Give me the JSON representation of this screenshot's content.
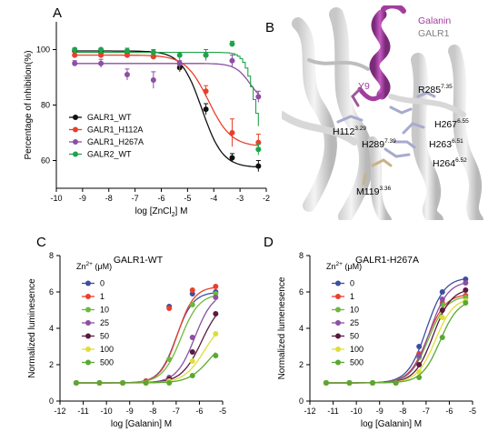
{
  "panels": {
    "A": "A",
    "B": "B",
    "C": "C",
    "D": "D"
  },
  "chart_data": [
    {
      "id": "A",
      "type": "line",
      "title": "",
      "xlabel": "log [ZnCl2] M",
      "xlabel_parts": [
        "log [ZnCl",
        "2",
        "] M"
      ],
      "ylabel": "Percentage of inhibition(%)",
      "xlim": [
        -10,
        -2
      ],
      "ylim": [
        50,
        110
      ],
      "xticks": [
        -10,
        -9,
        -8,
        -7,
        -6,
        -5,
        -4,
        -3,
        -2
      ],
      "yticks": [
        60,
        80,
        100
      ],
      "x": [
        -9.3,
        -8.3,
        -7.3,
        -6.3,
        -5.3,
        -4.3,
        -3.3,
        -2.3
      ],
      "legend_position": "lower-left",
      "series": [
        {
          "name": "GALR1_WT",
          "color": "#111111",
          "values": [
            99.5,
            99,
            99,
            97.5,
            93.5,
            78.5,
            61,
            58
          ],
          "errors": [
            1,
            1,
            1,
            1,
            1.5,
            2,
            1.5,
            2
          ],
          "curve": {
            "top": 99.5,
            "bottom": 57.5,
            "logic50": -4.45,
            "hill": 1.1
          }
        },
        {
          "name": "GALR1_H112A",
          "color": "#e8402a",
          "values": [
            98,
            98,
            98,
            97.5,
            95,
            85,
            70,
            66.5
          ],
          "errors": [
            1,
            1,
            1,
            1,
            3,
            2,
            5,
            3
          ],
          "curve": {
            "top": 98,
            "bottom": 65,
            "logic50": -4.2,
            "hill": 1.0
          }
        },
        {
          "name": "GALR1_H267A",
          "color": "#8c4fa3",
          "values": [
            95,
            95,
            91,
            89,
            95,
            98,
            96,
            83
          ],
          "errors": [
            1,
            1.5,
            2,
            3,
            1,
            2,
            2,
            2
          ],
          "curve": {
            "top": 95,
            "bottom": 80,
            "logic50": -2.6,
            "hill": 1.5
          }
        },
        {
          "name": "GALR2_WT",
          "color": "#1fa34a",
          "values": [
            100,
            100,
            99.5,
            99,
            98,
            98,
            102,
            64
          ],
          "errors": [
            0.5,
            0.5,
            1,
            1,
            1,
            1,
            1,
            2
          ],
          "curve": {
            "top": 99,
            "bottom": 60,
            "logic50": -2.45,
            "hill": 2.2,
            "step": true
          }
        }
      ]
    },
    {
      "id": "B",
      "type": "structure",
      "labels": {
        "galanin": "Galanin",
        "galr1": "GALR1",
        "y9": "Y9",
        "r285": "R285",
        "r285_sup": "7.35",
        "h112": "H112",
        "h112_sup": "3.29",
        "h289": "H289",
        "h289_sup": "7.39",
        "h267": "H267",
        "h267_sup": "6.55",
        "h263": "H263",
        "h263_sup": "6.51",
        "h264": "H264",
        "h264_sup": "6.52",
        "m119": "M119",
        "m119_sup": "3.36"
      },
      "colors": {
        "galanin": "#a23d9e",
        "galr1": "#808080",
        "stick": "#a8aacc"
      }
    },
    {
      "id": "C",
      "type": "line",
      "title": "GALR1-WT",
      "xlabel": "log [Galanin] M",
      "ylabel": "Normalized luminesence",
      "legend_title": "Zn",
      "legend_title_sup": "2+",
      "legend_title_suffix": " (μM)",
      "xlim": [
        -12,
        -5
      ],
      "ylim": [
        0,
        8
      ],
      "xticks": [
        -12,
        -11,
        -10,
        -9,
        -8,
        -7,
        -6,
        -5
      ],
      "yticks": [
        0,
        2,
        4,
        6,
        8
      ],
      "x": [
        -11.3,
        -10.3,
        -9.3,
        -8.3,
        -7.3,
        -6.3,
        -5.3
      ],
      "series": [
        {
          "name": "0",
          "color": "#3b4fa0",
          "values": [
            1,
            1,
            1,
            1.1,
            5.2,
            5.9,
            6.0
          ],
          "curve": {
            "top": 6.0,
            "logec50": -7.0,
            "hill": 1.2
          }
        },
        {
          "name": "1",
          "color": "#e8402a",
          "values": [
            1,
            1,
            1,
            1.1,
            5.1,
            6.1,
            6.3
          ],
          "curve": {
            "top": 6.3,
            "logec50": -6.95,
            "hill": 1.2
          }
        },
        {
          "name": "10",
          "color": "#6fb83e",
          "values": [
            1,
            1,
            1,
            1,
            2.3,
            5.3,
            5.9
          ],
          "curve": {
            "top": 5.9,
            "logec50": -6.8,
            "hill": 1.1
          }
        },
        {
          "name": "25",
          "color": "#8c4fa3",
          "values": [
            1,
            1,
            1,
            1,
            1.3,
            3.5,
            5.7
          ],
          "curve": {
            "top": 6.0,
            "logec50": -6.2,
            "hill": 1.1
          }
        },
        {
          "name": "50",
          "color": "#5a1a3e",
          "values": [
            1,
            1,
            1,
            1,
            1.2,
            2.7,
            4.8
          ],
          "curve": {
            "top": 5.6,
            "logec50": -5.9,
            "hill": 1.0
          }
        },
        {
          "name": "100",
          "color": "#dede3a",
          "values": [
            1,
            1,
            1,
            1,
            1.1,
            2.2,
            3.7
          ],
          "curve": {
            "top": 4.5,
            "logec50": -5.8,
            "hill": 1.0
          }
        },
        {
          "name": "500",
          "color": "#5aa832",
          "values": [
            1,
            1,
            1,
            1,
            1,
            1.4,
            2.5
          ],
          "curve": {
            "top": 3.5,
            "logec50": -5.6,
            "hill": 1.0
          }
        }
      ]
    },
    {
      "id": "D",
      "type": "line",
      "title": "GALR1-H267A",
      "xlabel": "log [Galanin] M",
      "ylabel": "Normalized lumenesence",
      "legend_title": "Zn",
      "legend_title_sup": "2+",
      "legend_title_suffix": " (μM)",
      "xlim": [
        -12,
        -5
      ],
      "ylim": [
        0,
        8
      ],
      "xticks": [
        -12,
        -11,
        -10,
        -9,
        -8,
        -7,
        -6,
        -5
      ],
      "yticks": [
        0,
        2,
        4,
        6,
        8
      ],
      "x": [
        -11.3,
        -10.3,
        -9.3,
        -8.3,
        -7.3,
        -6.3,
        -5.3
      ],
      "series": [
        {
          "name": "0",
          "color": "#3b4fa0",
          "values": [
            1,
            1,
            1,
            1,
            3.0,
            6.0,
            6.7
          ],
          "curve": {
            "top": 6.8,
            "logec50": -7.0,
            "hill": 1.1
          }
        },
        {
          "name": "1",
          "color": "#e8402a",
          "values": [
            1,
            1,
            1,
            1,
            2.6,
            5.4,
            5.8
          ],
          "curve": {
            "top": 5.9,
            "logec50": -6.95,
            "hill": 1.1
          }
        },
        {
          "name": "10",
          "color": "#6fb83e",
          "values": [
            1,
            1,
            1,
            1,
            2.4,
            5.3,
            5.7
          ],
          "curve": {
            "top": 5.8,
            "logec50": -6.9,
            "hill": 1.1
          }
        },
        {
          "name": "25",
          "color": "#8c4fa3",
          "values": [
            1,
            1,
            1,
            1,
            2.5,
            5.6,
            6.5
          ],
          "curve": {
            "top": 6.6,
            "logec50": -6.85,
            "hill": 1.1
          }
        },
        {
          "name": "50",
          "color": "#5a1a3e",
          "values": [
            1,
            1,
            1,
            1,
            2.0,
            5.0,
            6.1
          ],
          "curve": {
            "top": 6.2,
            "logec50": -6.7,
            "hill": 1.1
          }
        },
        {
          "name": "100",
          "color": "#dede3a",
          "values": [
            1,
            1,
            1,
            1,
            1.6,
            4.6,
            5.5
          ],
          "curve": {
            "top": 5.7,
            "logec50": -6.6,
            "hill": 1.1
          }
        },
        {
          "name": "500",
          "color": "#5aa832",
          "values": [
            1,
            1,
            1,
            1,
            1.3,
            3.5,
            5.4
          ],
          "curve": {
            "top": 5.6,
            "logec50": -6.4,
            "hill": 1.1
          }
        }
      ]
    }
  ]
}
